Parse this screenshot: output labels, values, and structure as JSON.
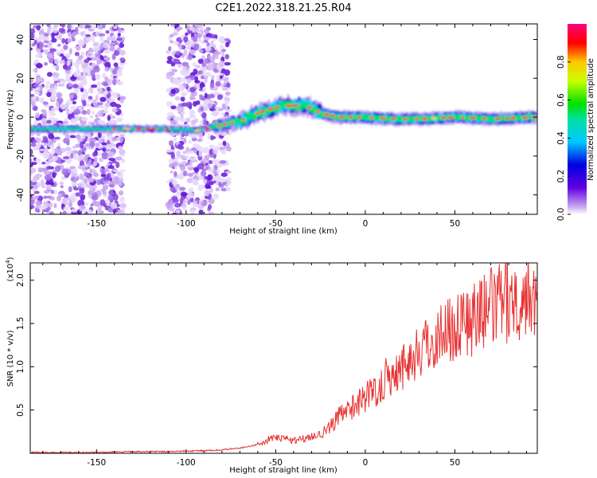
{
  "title": "C2E1.2022.318.21.25.R04",
  "chart_data": [
    {
      "type": "heatmap",
      "xlabel": "Height of straight line (km)",
      "ylabel": "Frequency (Hz)",
      "xlim": [
        -187,
        96
      ],
      "ylim": [
        -50,
        48
      ],
      "x_ticks": [
        -150,
        -100,
        -50,
        0,
        50
      ],
      "y_ticks": [
        -40,
        -20,
        0,
        20,
        40
      ],
      "x_tick_labels": [
        "-150",
        "-100",
        "-50",
        "0",
        "50"
      ],
      "y_tick_labels": [
        "-40",
        "-20",
        "0",
        "20",
        "40"
      ],
      "colorbar": {
        "label": "Normalized spectral amplitude",
        "range": [
          0,
          1
        ],
        "ticks": [
          0.0,
          0.2,
          0.4,
          0.6,
          0.8
        ],
        "tick_labels": [
          "0.0",
          "0.2",
          "0.4",
          "0.6",
          "0.8"
        ],
        "colors": [
          "#c8a8f0",
          "#0000e0",
          "#00e0ff",
          "#00e000",
          "#ffff00",
          "#ff0000",
          "#ff00ff"
        ]
      },
      "ridge": {
        "x": [
          -187,
          -150,
          -110,
          -95,
          -85,
          -70,
          -60,
          -50,
          -40,
          -33,
          -25,
          -15,
          0,
          15,
          30,
          50,
          70,
          96
        ],
        "frequency": [
          -6,
          -6,
          -6,
          -7,
          -5,
          -2,
          2,
          5,
          6,
          6,
          2,
          0,
          0,
          -1,
          -1,
          0,
          -1,
          0
        ]
      },
      "noise_regions": [
        {
          "x": [
            -187,
            -135
          ],
          "frequency": [
            -50,
            48
          ]
        },
        {
          "x": [
            -110,
            -83
          ],
          "frequency": [
            -50,
            48
          ]
        },
        {
          "x": [
            -83,
            -76
          ],
          "frequency": [
            -40,
            40
          ]
        }
      ]
    },
    {
      "type": "line",
      "xlabel": "Height of straight line (km)",
      "ylabel": "SNR (10 * v/v)",
      "y_multiplier_label": "(x10",
      "y_multiplier_exp": "4",
      "xlim": [
        -187,
        96
      ],
      "ylim": [
        0,
        2.2
      ],
      "x_ticks": [
        -150,
        -100,
        -50,
        0,
        50
      ],
      "y_ticks": [
        0.5,
        1.0,
        1.5,
        2.0
      ],
      "x_tick_labels": [
        "-150",
        "-100",
        "-50",
        "0",
        "50"
      ],
      "y_tick_labels": [
        "0.5",
        "1.0",
        "1.5",
        "2.0"
      ],
      "color": "#e83232",
      "series": [
        {
          "x": [
            -187,
            -170,
            -150,
            -130,
            -110,
            -90,
            -80,
            -70,
            -60,
            -55,
            -50,
            -45,
            -40,
            -35,
            -30,
            -25,
            -20,
            -15,
            -10,
            -5,
            0,
            5,
            10,
            15,
            20,
            25,
            30,
            35,
            40,
            45,
            50,
            55,
            60,
            65,
            70,
            75,
            80,
            85,
            90,
            96
          ],
          "values": [
            0.01,
            0.01,
            0.01,
            0.02,
            0.02,
            0.03,
            0.04,
            0.06,
            0.1,
            0.15,
            0.18,
            0.17,
            0.15,
            0.17,
            0.2,
            0.22,
            0.3,
            0.42,
            0.48,
            0.58,
            0.65,
            0.72,
            0.82,
            0.92,
            1.0,
            1.08,
            1.18,
            1.25,
            1.35,
            1.42,
            1.48,
            1.52,
            1.55,
            1.62,
            1.68,
            1.72,
            1.76,
            1.8,
            1.84,
            1.88
          ]
        }
      ]
    }
  ]
}
